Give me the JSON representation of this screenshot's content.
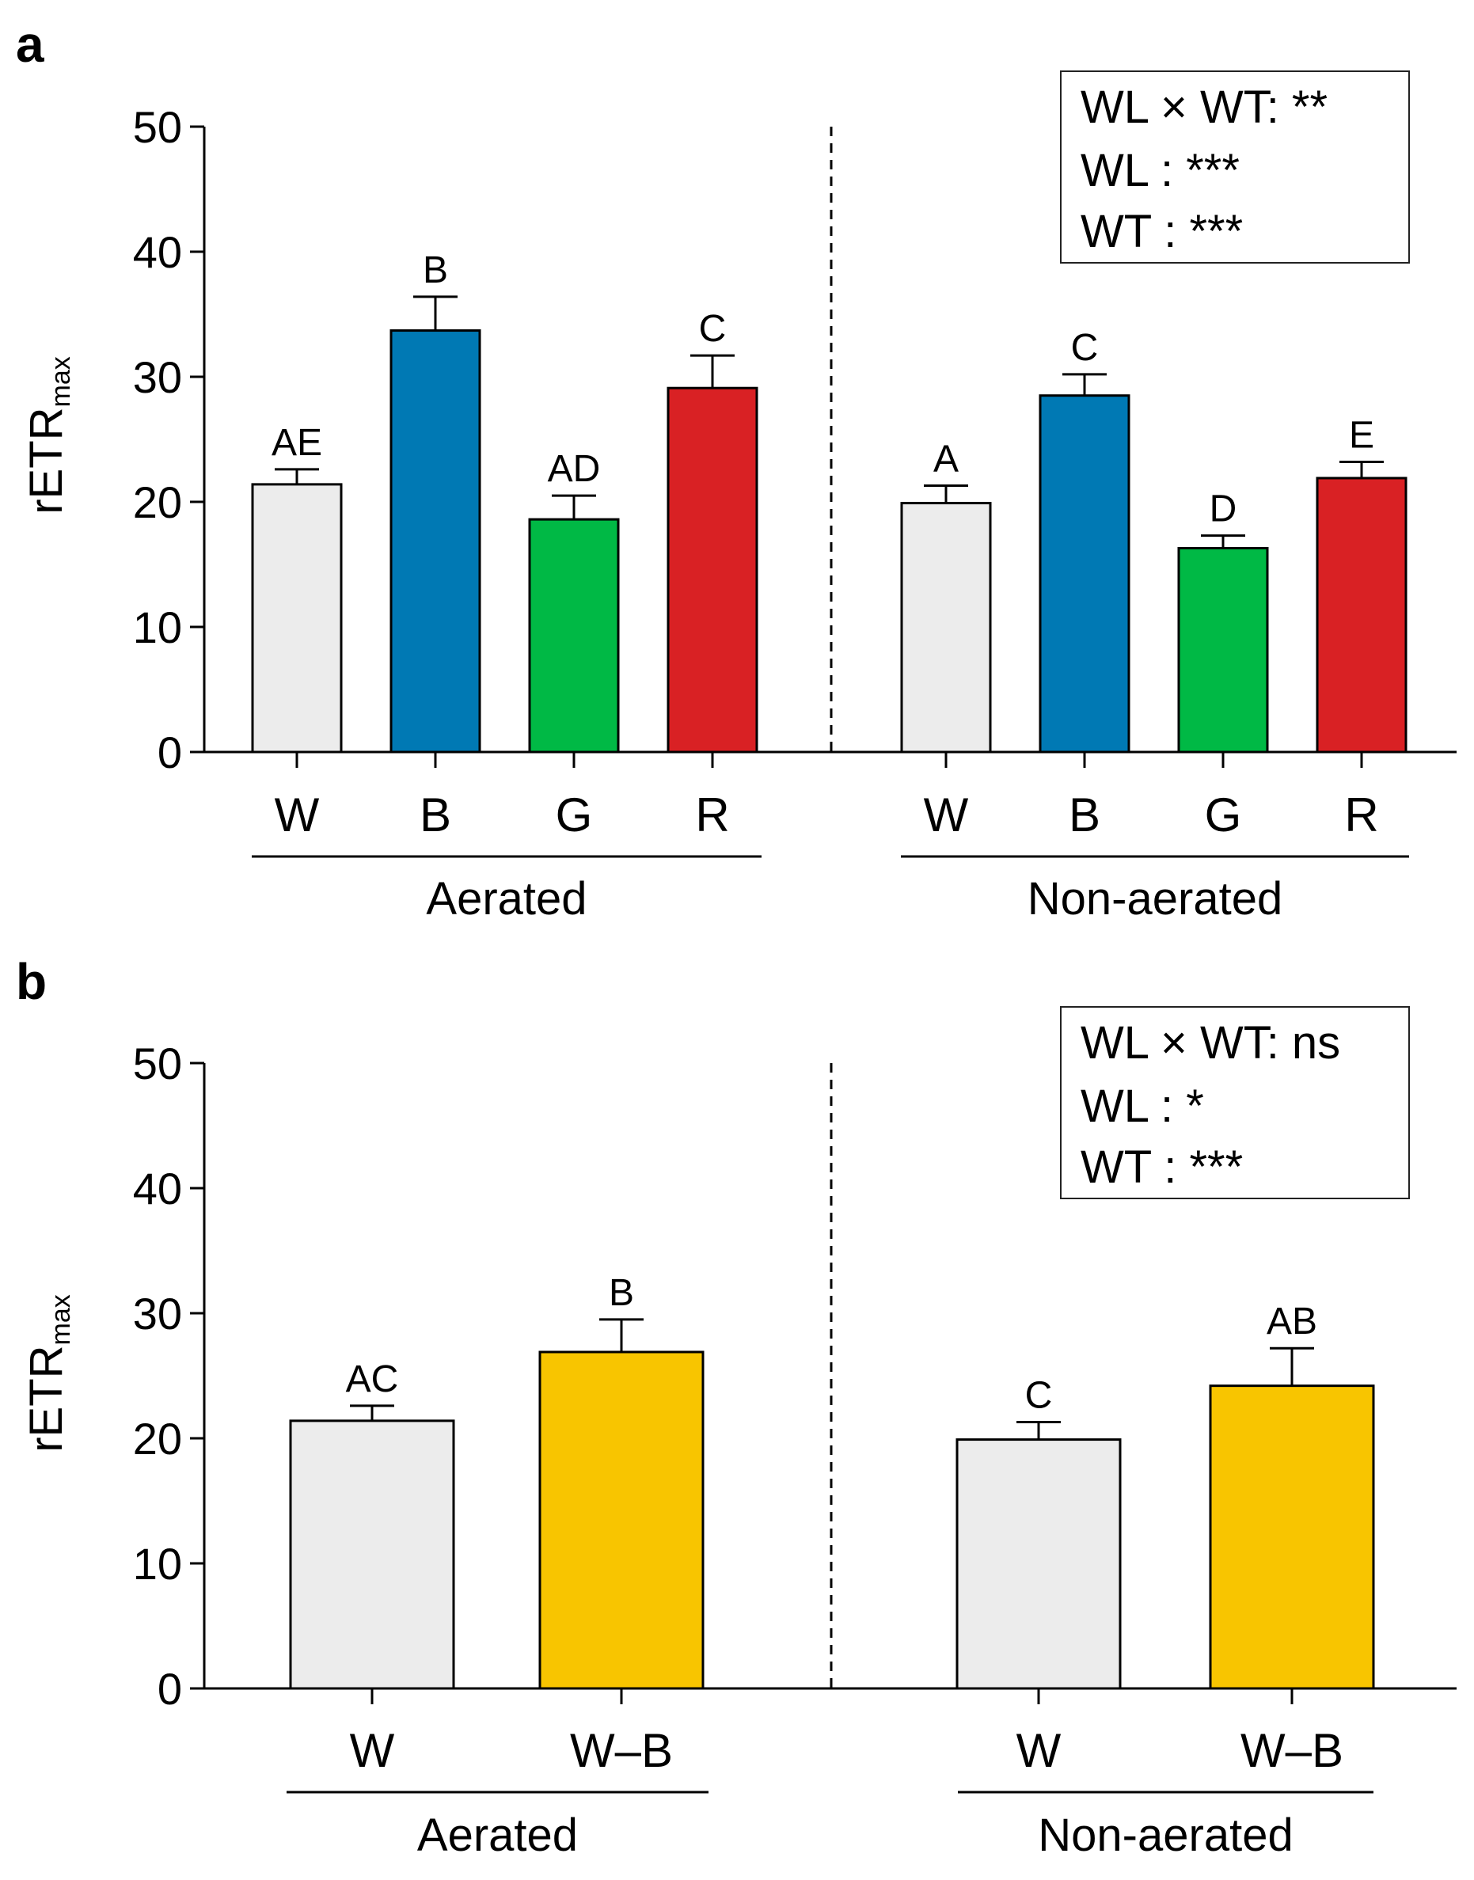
{
  "figure": {
    "panels": [
      {
        "letter": "a",
        "y_label_main": "rETR",
        "y_label_sub": "max",
        "stats": [
          "WL × WT: **",
          "WL : ***",
          "WT : ***"
        ]
      },
      {
        "letter": "b",
        "y_label_main": "rETR",
        "y_label_sub": "max",
        "stats": [
          "WL × WT: ns",
          "WL : *",
          "WT : ***"
        ]
      }
    ]
  },
  "chart_data": [
    {
      "type": "bar",
      "panel": "a",
      "ylabel": "rETRmax",
      "ylim": [
        0,
        50
      ],
      "yticks": [
        0,
        10,
        20,
        30,
        40,
        50
      ],
      "groups": [
        {
          "name": "Aerated",
          "categories": [
            "W",
            "B",
            "G",
            "R"
          ],
          "values": [
            21.4,
            33.7,
            18.6,
            29.1
          ],
          "errors": [
            1.2,
            2.7,
            1.9,
            2.6
          ],
          "letters": [
            "AE",
            "B",
            "AD",
            "C"
          ],
          "colors": [
            "#ececec",
            "#0079b4",
            "#00b945",
            "#d92124"
          ]
        },
        {
          "name": "Non-aerated",
          "categories": [
            "W",
            "B",
            "G",
            "R"
          ],
          "values": [
            19.9,
            28.5,
            16.3,
            21.9
          ],
          "errors": [
            1.4,
            1.7,
            1.0,
            1.3
          ],
          "letters": [
            "A",
            "C",
            "D",
            "E"
          ],
          "colors": [
            "#ececec",
            "#0079b4",
            "#00b945",
            "#d92124"
          ]
        }
      ],
      "grid": false
    },
    {
      "type": "bar",
      "panel": "b",
      "ylabel": "rETRmax",
      "ylim": [
        0,
        50
      ],
      "yticks": [
        0,
        10,
        20,
        30,
        40,
        50
      ],
      "groups": [
        {
          "name": "Aerated",
          "categories": [
            "W",
            "W–B"
          ],
          "values": [
            21.4,
            26.9
          ],
          "errors": [
            1.2,
            2.6
          ],
          "letters": [
            "AC",
            "B"
          ],
          "colors": [
            "#ececec",
            "#f8c500"
          ]
        },
        {
          "name": "Non-aerated",
          "categories": [
            "W",
            "W–B"
          ],
          "values": [
            19.9,
            24.2
          ],
          "errors": [
            1.4,
            3.0
          ],
          "letters": [
            "C",
            "AB"
          ],
          "colors": [
            "#ececec",
            "#f8c500"
          ]
        }
      ],
      "grid": false
    }
  ]
}
